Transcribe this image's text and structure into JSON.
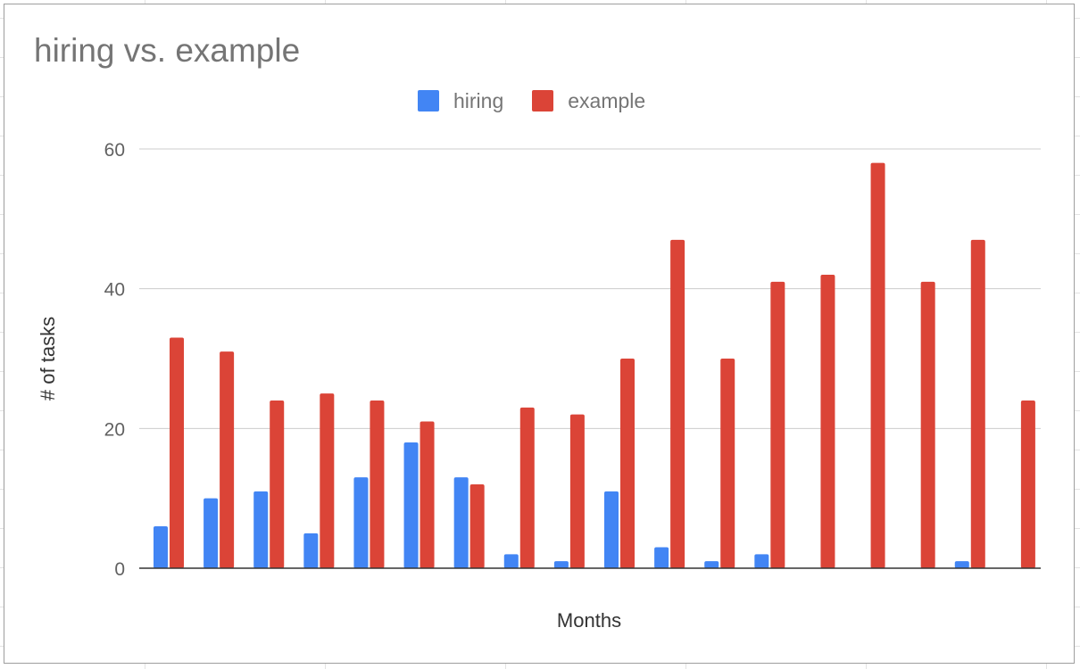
{
  "chart_data": {
    "type": "bar",
    "title": "hiring vs. example",
    "xlabel": "Months",
    "ylabel": "# of tasks",
    "ylim": [
      0,
      60
    ],
    "yticks": [
      0,
      20,
      40,
      60
    ],
    "grid": true,
    "legend_position": "top-center",
    "categories": [
      "",
      "",
      "",
      "",
      "",
      "",
      "",
      "",
      "",
      "",
      "",
      "",
      "",
      "",
      "",
      "",
      "",
      ""
    ],
    "series": [
      {
        "name": "hiring",
        "color": "#4285f4",
        "values": [
          6,
          10,
          11,
          5,
          13,
          18,
          13,
          2,
          1,
          11,
          3,
          1,
          2,
          0,
          0,
          0,
          1,
          0
        ]
      },
      {
        "name": "example",
        "color": "#db4437",
        "values": [
          33,
          31,
          24,
          25,
          24,
          21,
          12,
          23,
          22,
          30,
          47,
          30,
          41,
          42,
          58,
          41,
          47,
          24
        ]
      }
    ]
  }
}
